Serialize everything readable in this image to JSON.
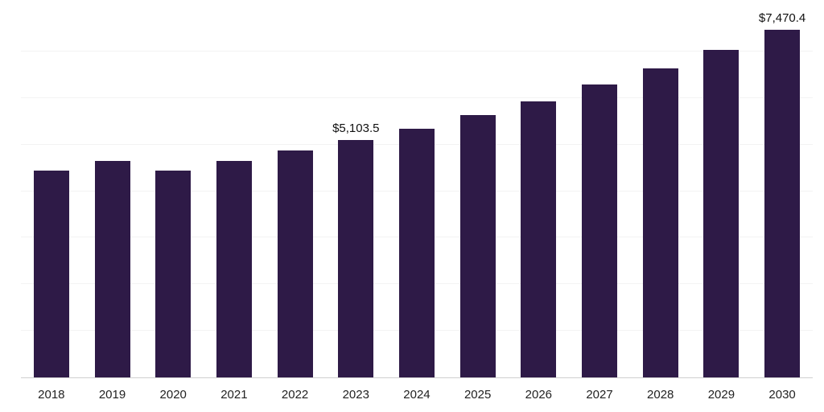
{
  "chart_data": {
    "type": "bar",
    "title": "",
    "xlabel": "",
    "ylabel": "",
    "categories": [
      "2018",
      "2019",
      "2020",
      "2021",
      "2022",
      "2023",
      "2024",
      "2025",
      "2026",
      "2027",
      "2028",
      "2029",
      "2030"
    ],
    "values": [
      4440,
      4655,
      4440,
      4650,
      4865,
      5103.5,
      5340,
      5630,
      5925,
      6295,
      6640,
      7030,
      7470.4
    ],
    "value_labels": [
      "",
      "",
      "",
      "",
      "",
      "$5,103.5",
      "",
      "",
      "",
      "",
      "",
      "",
      "$7,470.4"
    ],
    "ylim": [
      0,
      8000
    ],
    "gridline_step": 1000,
    "grid": "on",
    "legend": "none"
  },
  "colors": {
    "bar": "#2E1A47",
    "axis_line": "#CFCFCF",
    "gridline": "#F3F3F3",
    "value_label_text": "#111111",
    "tick_label_text": "#222222",
    "background": "#FFFFFF"
  }
}
